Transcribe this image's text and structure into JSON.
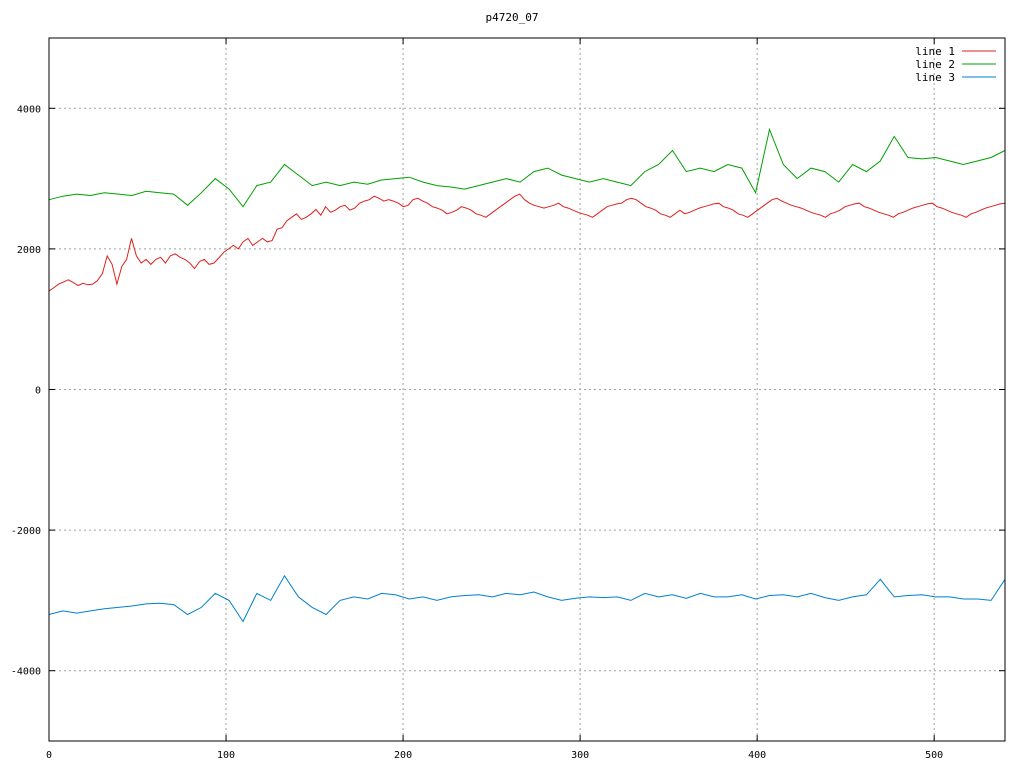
{
  "chart_data": {
    "type": "line",
    "title": "p4720_07",
    "xlabel": "",
    "ylabel": "",
    "xlim": [
      0,
      540
    ],
    "ylim": [
      -5000,
      5000
    ],
    "x_ticks": [
      0,
      100,
      200,
      300,
      400,
      500
    ],
    "y_ticks": [
      -4000,
      -2000,
      0,
      2000,
      4000
    ],
    "y_tick_labels": [
      "-4000",
      "-2000",
      "0",
      "2000",
      "4000"
    ],
    "grid": true,
    "legend_position": "top-right",
    "x_step": 10,
    "series": [
      {
        "name": "line 1",
        "color": "#e0201c",
        "values": [
          1400,
          1450,
          1500,
          1530,
          1560,
          1520,
          1480,
          1510,
          1490,
          1500,
          1550,
          1650,
          1900,
          1780,
          1500,
          1750,
          1850,
          2150,
          1900,
          1800,
          1850,
          1780,
          1850,
          1880,
          1800,
          1900,
          1930,
          1880,
          1850,
          1800,
          1720,
          1820,
          1850,
          1780,
          1800,
          1870,
          1950,
          2000,
          2050,
          2000,
          2100,
          2150,
          2050,
          2100,
          2150,
          2100,
          2120,
          2280,
          2300,
          2400,
          2450,
          2500,
          2420,
          2450,
          2500,
          2560,
          2480,
          2600,
          2520,
          2550,
          2600,
          2620,
          2550,
          2580,
          2650,
          2680,
          2700,
          2750,
          2720,
          2680,
          2700,
          2680,
          2650,
          2600,
          2620,
          2700,
          2720,
          2680,
          2650,
          2600,
          2580,
          2550,
          2500,
          2520,
          2550,
          2600,
          2580,
          2550,
          2500,
          2480,
          2450,
          2500,
          2550,
          2600,
          2650,
          2700,
          2750,
          2780,
          2700,
          2650,
          2620,
          2600,
          2580,
          2600,
          2620,
          2650,
          2600,
          2580,
          2550,
          2520,
          2500,
          2480,
          2450,
          2500,
          2550,
          2600,
          2620,
          2640,
          2650,
          2700,
          2720,
          2700,
          2650,
          2600,
          2580,
          2550,
          2500,
          2480,
          2450,
          2500,
          2550,
          2500,
          2520,
          2550,
          2580,
          2600,
          2620,
          2640,
          2650,
          2600,
          2580,
          2550,
          2500,
          2480,
          2450,
          2500,
          2550,
          2600,
          2650,
          2700,
          2720,
          2680,
          2650,
          2620,
          2600,
          2580,
          2550,
          2520,
          2500,
          2480,
          2450,
          2500,
          2520,
          2550,
          2600,
          2620,
          2640,
          2650,
          2600,
          2580,
          2550,
          2520,
          2500,
          2480,
          2450,
          2500,
          2520,
          2550,
          2580,
          2600,
          2620,
          2640,
          2650,
          2600,
          2580,
          2550,
          2520,
          2500,
          2480,
          2450,
          2500,
          2520,
          2550,
          2580,
          2600,
          2620,
          2640,
          2650
        ]
      },
      {
        "name": "line 2",
        "color": "#00a000",
        "values": [
          2700,
          2750,
          2780,
          2760,
          2800,
          2780,
          2760,
          2820,
          2800,
          2780,
          2620,
          2800,
          3000,
          2850,
          2600,
          2900,
          2950,
          3200,
          3050,
          2900,
          2950,
          2900,
          2950,
          2920,
          2980,
          3000,
          3020,
          2950,
          2900,
          2880,
          2850,
          2900,
          2950,
          3000,
          2950,
          3100,
          3150,
          3050,
          3000,
          2950,
          3000,
          2950,
          2900,
          3100,
          3200,
          3400,
          3100,
          3150,
          3100,
          3200,
          3150,
          2800,
          3700,
          3200,
          3000,
          3150,
          3100,
          2950,
          3200,
          3100,
          3250,
          3600,
          3300,
          3280,
          3300,
          3250,
          3200,
          3250,
          3300,
          3400
        ]
      },
      {
        "name": "line 3",
        "color": "#0080d0",
        "values": [
          -3200,
          -3150,
          -3180,
          -3150,
          -3120,
          -3100,
          -3080,
          -3050,
          -3040,
          -3060,
          -3200,
          -3100,
          -2900,
          -3000,
          -3300,
          -2900,
          -3000,
          -2650,
          -2950,
          -3100,
          -3200,
          -3000,
          -2950,
          -2980,
          -2900,
          -2920,
          -2980,
          -2950,
          -3000,
          -2950,
          -2930,
          -2920,
          -2950,
          -2900,
          -2920,
          -2880,
          -2950,
          -3000,
          -2970,
          -2950,
          -2960,
          -2950,
          -3000,
          -2900,
          -2950,
          -2920,
          -2970,
          -2900,
          -2950,
          -2950,
          -2920,
          -2980,
          -2930,
          -2920,
          -2950,
          -2900,
          -2960,
          -3000,
          -2950,
          -2920,
          -2700,
          -2950,
          -2930,
          -2920,
          -2950,
          -2950,
          -2980,
          -2980,
          -3000,
          -2700
        ]
      }
    ]
  }
}
